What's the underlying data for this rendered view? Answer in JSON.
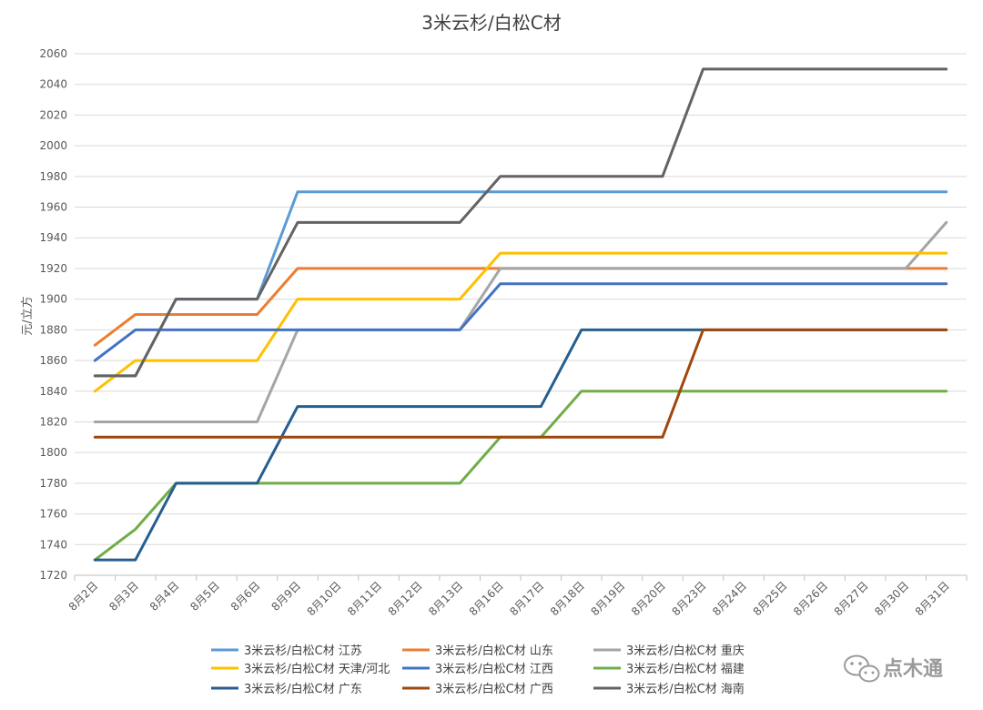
{
  "chart_data": {
    "type": "line",
    "title": "3米云杉/白松C材",
    "ylabel": "元/立方",
    "xlabel": "",
    "ylim": [
      1720,
      2060
    ],
    "y_ticks": [
      1720,
      1740,
      1760,
      1780,
      1800,
      1820,
      1840,
      1860,
      1880,
      1900,
      1920,
      1940,
      1960,
      1980,
      2000,
      2020,
      2040,
      2060
    ],
    "grid": true,
    "legend_position": "bottom",
    "categories": [
      "8月2日",
      "8月3日",
      "8月4日",
      "8月5日",
      "8月6日",
      "8月9日",
      "8月10日",
      "8月11日",
      "8月12日",
      "8月13日",
      "8月16日",
      "8月17日",
      "8月18日",
      "8月19日",
      "8月20日",
      "8月23日",
      "8月24日",
      "8月25日",
      "8月26日",
      "8月27日",
      "8月30日",
      "8月31日"
    ],
    "series": [
      {
        "name": "3米云杉/白松C材 江苏",
        "color": "#5B9BD5",
        "values": [
          1850,
          1850,
          1900,
          1900,
          1900,
          1970,
          1970,
          1970,
          1970,
          1970,
          1970,
          1970,
          1970,
          1970,
          1970,
          1970,
          1970,
          1970,
          1970,
          1970,
          1970,
          1970
        ]
      },
      {
        "name": "3米云杉/白松C材 山东",
        "color": "#ED7D31",
        "values": [
          1870,
          1890,
          1890,
          1890,
          1890,
          1920,
          1920,
          1920,
          1920,
          1920,
          1920,
          1920,
          1920,
          1920,
          1920,
          1920,
          1920,
          1920,
          1920,
          1920,
          1920,
          1920
        ]
      },
      {
        "name": "3米云杉/白松C材 重庆",
        "color": "#A5A5A5",
        "values": [
          1820,
          1820,
          1820,
          1820,
          1820,
          1880,
          1880,
          1880,
          1880,
          1880,
          1920,
          1920,
          1920,
          1920,
          1920,
          1920,
          1920,
          1920,
          1920,
          1920,
          1920,
          1950
        ]
      },
      {
        "name": "3米云杉/白松C材 天津/河北",
        "color": "#FFC000",
        "values": [
          1840,
          1860,
          1860,
          1860,
          1860,
          1900,
          1900,
          1900,
          1900,
          1900,
          1930,
          1930,
          1930,
          1930,
          1930,
          1930,
          1930,
          1930,
          1930,
          1930,
          1930,
          1930
        ]
      },
      {
        "name": "3米云杉/白松C材 江西",
        "color": "#4472C4",
        "values": [
          1860,
          1880,
          1880,
          1880,
          1880,
          1880,
          1880,
          1880,
          1880,
          1880,
          1910,
          1910,
          1910,
          1910,
          1910,
          1910,
          1910,
          1910,
          1910,
          1910,
          1910,
          1910
        ]
      },
      {
        "name": "3米云杉/白松C材 福建",
        "color": "#70AD47",
        "values": [
          1730,
          1750,
          1780,
          1780,
          1780,
          1780,
          1780,
          1780,
          1780,
          1780,
          1810,
          1810,
          1840,
          1840,
          1840,
          1840,
          1840,
          1840,
          1840,
          1840,
          1840,
          1840
        ]
      },
      {
        "name": "3米云杉/白松C材 广东",
        "color": "#255E91",
        "values": [
          1730,
          1730,
          1780,
          1780,
          1780,
          1830,
          1830,
          1830,
          1830,
          1830,
          1830,
          1830,
          1880,
          1880,
          1880,
          1880,
          1880,
          1880,
          1880,
          1880,
          1880,
          1880
        ]
      },
      {
        "name": "3米云杉/白松C材 广西",
        "color": "#9E480E",
        "values": [
          1810,
          1810,
          1810,
          1810,
          1810,
          1810,
          1810,
          1810,
          1810,
          1810,
          1810,
          1810,
          1810,
          1810,
          1810,
          1880,
          1880,
          1880,
          1880,
          1880,
          1880,
          1880
        ]
      },
      {
        "name": "3米云杉/白松C材 海南",
        "color": "#636363",
        "values": [
          1850,
          1850,
          1900,
          1900,
          1900,
          1950,
          1950,
          1950,
          1950,
          1950,
          1980,
          1980,
          1980,
          1980,
          1980,
          2050,
          2050,
          2050,
          2050,
          2050,
          2050,
          2050
        ]
      }
    ]
  },
  "watermark": {
    "text": "点木通",
    "icon": "wechat-icon"
  }
}
